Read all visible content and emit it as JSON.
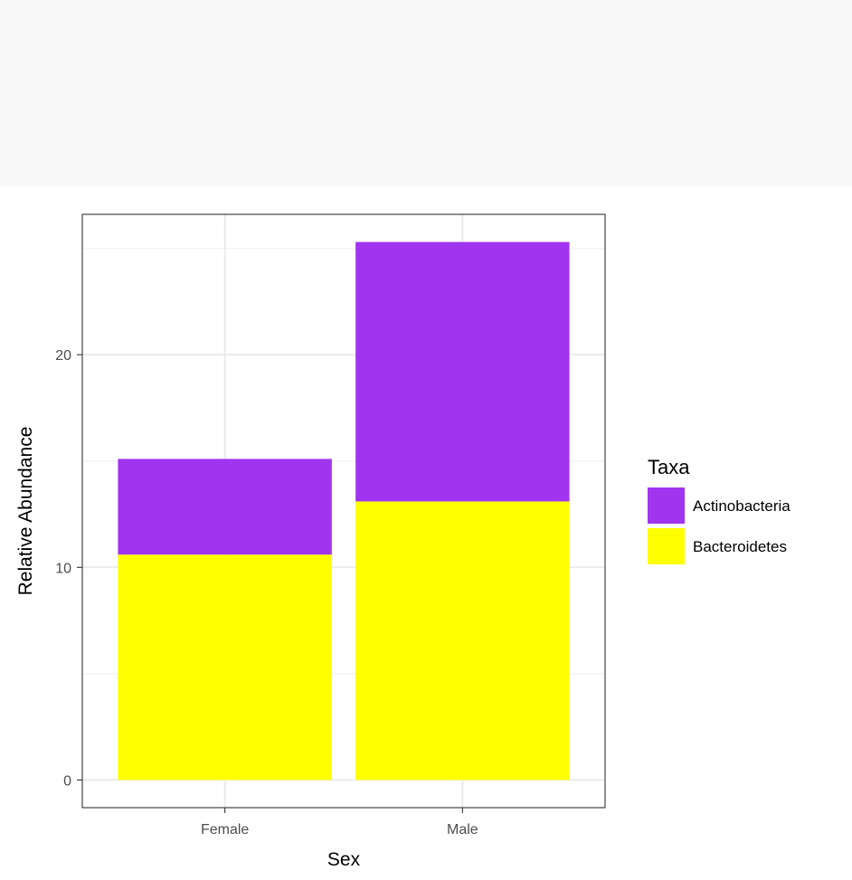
{
  "chart_data": {
    "type": "bar",
    "stacked": true,
    "categories": [
      "Female",
      "Male"
    ],
    "series": [
      {
        "name": "Bacteroidetes",
        "color": "#ffff00",
        "values": [
          10.6,
          13.1
        ]
      },
      {
        "name": "Actinobacteria",
        "color": "#a035f0",
        "values": [
          4.5,
          12.2
        ]
      }
    ],
    "title": "",
    "xlabel": "Sex",
    "ylabel": "Relative Abundance",
    "ylim": [
      -1.3,
      26.6
    ],
    "yticks": [
      0,
      10,
      20
    ],
    "ytick_labels": [
      "0",
      "10",
      "20"
    ],
    "grid": true,
    "legend": {
      "title": "Taxa",
      "placement": "right",
      "entries": [
        "Actinobacteria",
        "Bacteroidetes"
      ]
    }
  }
}
